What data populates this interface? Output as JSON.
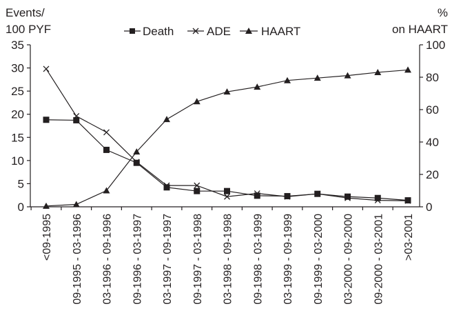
{
  "chart_data": {
    "type": "line",
    "y_left_label_line1": "Events/",
    "y_left_label_line2": "100 PYF",
    "y_right_label_line1": "%",
    "y_right_label_line2": "on HAART",
    "ylim_left": [
      0,
      35
    ],
    "ylim_right": [
      0,
      100
    ],
    "y_left_ticks": [
      "0",
      "5",
      "10",
      "15",
      "20",
      "25",
      "30",
      "35"
    ],
    "y_right_ticks": [
      "0",
      "20",
      "40",
      "60",
      "80",
      "100"
    ],
    "legend_position": "top-center",
    "categories": [
      "<09-1995",
      "09-1995 - 03-1996",
      "03-1996 - 09-1996",
      "09-1996 - 03-1997",
      "03-1997 - 09-1997",
      "09-1997 - 03-1998",
      "03-1998 - 09-1998",
      "09-1998 - 03-1999",
      "03-1999 - 09-1999",
      "09-1999 - 03-2000",
      "03-2000 - 09-2000",
      "09-2000 - 03-2001",
      ">03-2001"
    ],
    "series": [
      {
        "name": "Death",
        "axis": "left",
        "marker": "square",
        "values": [
          18.8,
          18.7,
          12.3,
          9.5,
          4.2,
          3.4,
          3.4,
          2.4,
          2.3,
          2.8,
          2.2,
          1.9,
          1.4
        ]
      },
      {
        "name": "ADE",
        "axis": "left",
        "marker": "x",
        "values": [
          29.8,
          19.6,
          16.1,
          9.7,
          4.6,
          4.6,
          2.2,
          2.9,
          2.2,
          2.8,
          1.9,
          1.4,
          1.3
        ]
      },
      {
        "name": "HAART",
        "axis": "right",
        "marker": "triangle",
        "values": [
          0.5,
          1.5,
          10,
          34,
          54,
          65,
          71,
          74,
          78,
          79.5,
          81,
          83,
          84.5
        ]
      }
    ],
    "colors": {
      "line": "#231f20",
      "background": "#ffffff"
    }
  }
}
